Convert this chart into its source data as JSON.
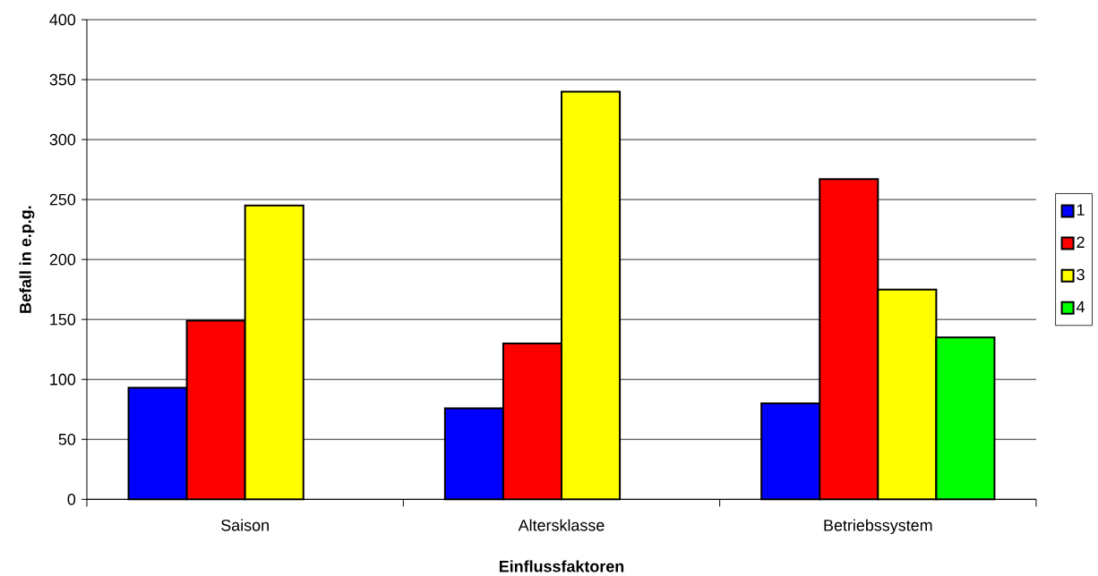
{
  "chart_data": {
    "type": "bar",
    "xlabel": "Einflussfaktoren",
    "ylabel": "Befall in e.p.g.",
    "categories": [
      "Saison",
      "Altersklasse",
      "Betriebssystem"
    ],
    "series": [
      {
        "name": "1",
        "color": "#0000ff",
        "values": [
          93,
          76,
          80
        ]
      },
      {
        "name": "2",
        "color": "#ff0000",
        "values": [
          149,
          130,
          267
        ]
      },
      {
        "name": "3",
        "color": "#ffff00",
        "values": [
          245,
          340,
          175
        ]
      },
      {
        "name": "4",
        "color": "#00ff00",
        "values": [
          null,
          null,
          135
        ]
      }
    ],
    "ylim": [
      0,
      400
    ],
    "yticks": [
      0,
      50,
      100,
      150,
      200,
      250,
      300,
      350,
      400
    ],
    "grid": "y",
    "legend": "right"
  }
}
